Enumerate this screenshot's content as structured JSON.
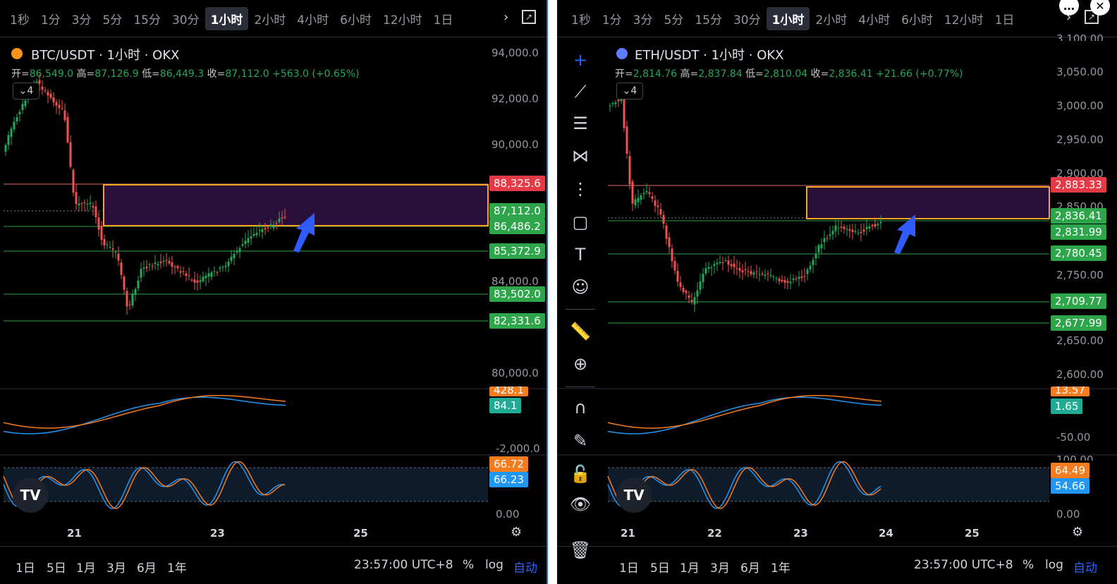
{
  "timeframes": [
    "1秒",
    "1分",
    "3分",
    "5分",
    "15分",
    "30分",
    "1小时",
    "2小时",
    "4小时",
    "6小时",
    "12小时",
    "1日"
  ],
  "active_timeframe": "1小时",
  "left": {
    "title": "BTC/USDT · 1小时 · OKX",
    "ohlc": {
      "open_label": "开=",
      "open": "86,549.0",
      "high_label": "高=",
      "high": "87,126.9",
      "low_label": "低=",
      "low": "86,449.3",
      "close_label": "收=",
      "close": "87,112.0",
      "change": "+563.0 (+0.65%)"
    },
    "indicator_count": "4",
    "price_axis": [
      "94,000.0",
      "92,000.0",
      "90,000.0",
      "84,000.0",
      "80,000.0"
    ],
    "price_tags": {
      "red": "88,325.6",
      "current": "87,112.0",
      "level1": "86,486.2",
      "level2": "85,372.9",
      "level3": "83,502.0",
      "level4": "82,331.6"
    },
    "macd_tags": {
      "top": "428.1",
      "value": "84.1"
    },
    "macd_axis": "-2,000.0",
    "stoch_tags": {
      "k": "66.72",
      "d": "66.23"
    },
    "stoch_axis": "0.00",
    "x_labels": [
      "21",
      "23",
      "25"
    ],
    "time": "23:57:00 UTC+8",
    "range_buttons": [
      "1日",
      "5日",
      "1月",
      "3月",
      "6月",
      "1年"
    ],
    "percent": "%",
    "log": "log",
    "auto": "自动"
  },
  "right": {
    "title": "ETH/USDT · 1小时 · OKX",
    "ohlc": {
      "open_label": "开=",
      "open": "2,814.76",
      "high_label": "高=",
      "high": "2,837.84",
      "low_label": "低=",
      "low": "2,810.04",
      "close_label": "收=",
      "close": "2,836.41",
      "change": "+21.66 (+0.77%)"
    },
    "indicator_count": "4",
    "price_axis": [
      "3,100.00",
      "3,050.00",
      "3,000.00",
      "2,950.00",
      "2,900.00",
      "2,850.00",
      "2,750.00",
      "2,650.00",
      "2,600.00"
    ],
    "price_tags": {
      "red": "2,883.33",
      "current": "2,836.41",
      "level1": "2,831.99",
      "level2": "2,780.45",
      "level3": "2,709.77",
      "level4": "2,677.99"
    },
    "macd_tags": {
      "top": "13.57",
      "value": "1.65"
    },
    "macd_axis": "-50.00",
    "stoch_axis_top": "100.00",
    "stoch_tags": {
      "k": "64.49",
      "d": "54.66"
    },
    "stoch_axis": "0.00",
    "x_labels": [
      "21",
      "22",
      "23",
      "24",
      "25"
    ],
    "time": "23:57:00 UTC+8",
    "range_buttons": [
      "1日",
      "5日",
      "1月",
      "3月",
      "6月",
      "1年"
    ],
    "percent": "%",
    "log": "log",
    "auto": "自动"
  },
  "colors": {
    "up": "#26a65b",
    "down": "#ef5350",
    "zone_border": "#f5a623",
    "zone_fill": "#2a0f3a",
    "arrow": "#2f5bff",
    "macd_line": "#2196f3",
    "signal_line": "#f57c1f"
  },
  "icons": [
    "crosshair-icon",
    "trend-line-icon",
    "fib-icon",
    "pattern-icon",
    "gann-icon",
    "rectangle-icon",
    "text-icon",
    "emoji-icon",
    "ruler-icon",
    "zoom-in-icon",
    "magnet-icon",
    "lock-draw-icon",
    "unlock-icon",
    "eye-icon",
    "trash-icon"
  ]
}
